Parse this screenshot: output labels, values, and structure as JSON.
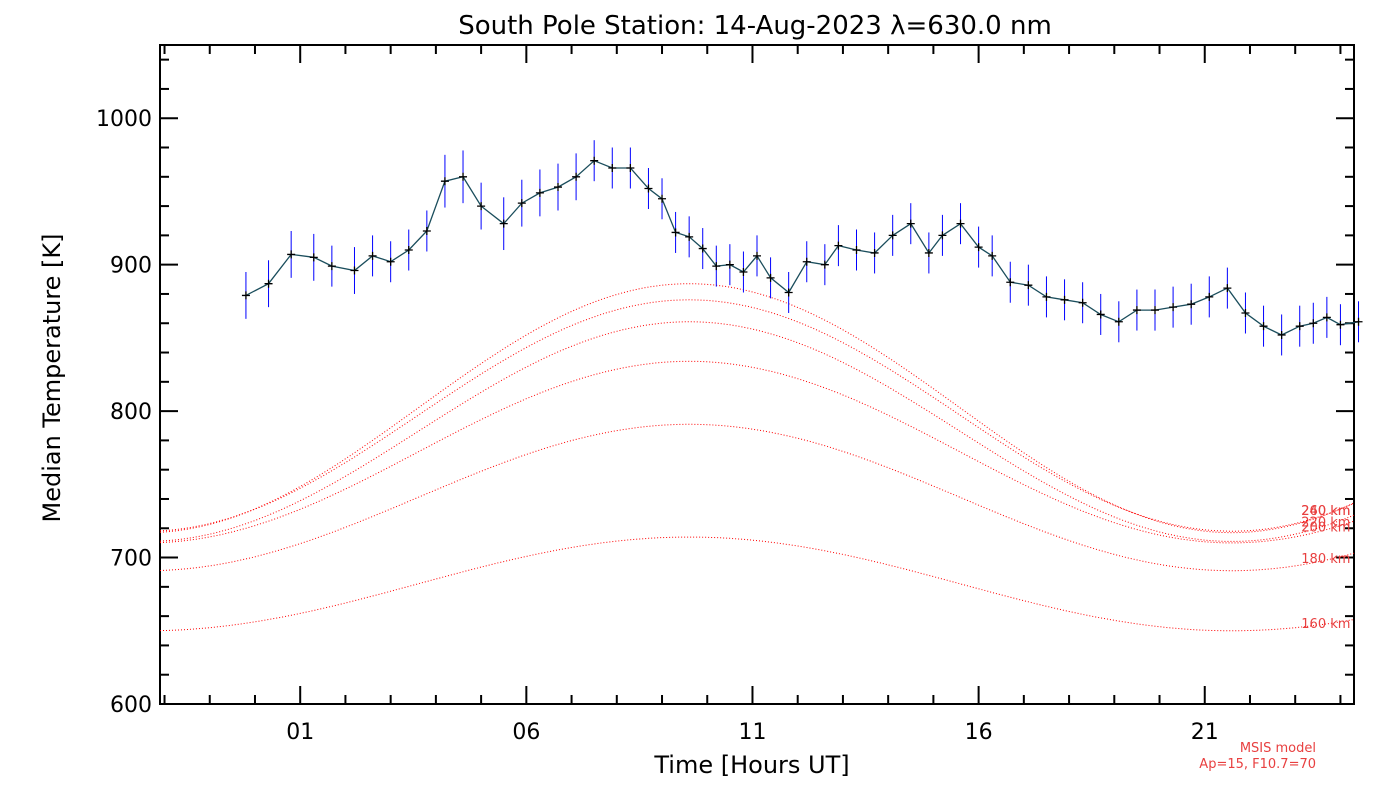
{
  "chart_data": {
    "type": "line",
    "title": "South Pole Station: 14-Aug-2023 λ=630.0 nm",
    "xlabel": "Time [Hours UT]",
    "ylabel": "Median Temperature [K]",
    "xlim": [
      -2.1,
      24.3
    ],
    "ylim": [
      600,
      1050
    ],
    "x_ticks": [
      1,
      6,
      11,
      16,
      21
    ],
    "x_tick_labels": [
      "01",
      "06",
      "11",
      "16",
      "21"
    ],
    "y_ticks": [
      600,
      700,
      800,
      900,
      1000
    ],
    "y_tick_labels": [
      "600",
      "700",
      "800",
      "900",
      "1000"
    ],
    "measurements": {
      "name": "Median temperature",
      "line_color": "#1a4d5c",
      "errorbar_color": "#0000ff",
      "marker_color": "#000000",
      "x": [
        -0.2,
        0.3,
        0.8,
        1.3,
        1.7,
        2.2,
        2.6,
        3.0,
        3.4,
        3.8,
        4.2,
        4.6,
        5.0,
        5.5,
        5.9,
        6.3,
        6.7,
        7.1,
        7.5,
        7.9,
        8.3,
        8.7,
        9.0,
        9.3,
        9.6,
        9.9,
        10.2,
        10.5,
        10.8,
        11.1,
        11.4,
        11.8,
        12.2,
        12.6,
        12.9,
        13.3,
        13.7,
        14.1,
        14.5,
        14.9,
        15.2,
        15.6,
        16.0,
        16.3,
        16.7,
        17.1,
        17.5,
        17.9,
        18.3,
        18.7,
        19.1,
        19.5,
        19.9,
        20.3,
        20.7,
        21.1,
        21.5,
        21.9,
        22.3,
        22.7,
        23.1,
        23.4,
        23.7,
        24.0,
        24.4
      ],
      "y": [
        879,
        887,
        907,
        905,
        899,
        896,
        906,
        902,
        910,
        923,
        957,
        960,
        940,
        928,
        942,
        949,
        953,
        960,
        971,
        966,
        966,
        952,
        945,
        922,
        919,
        911,
        899,
        900,
        895,
        906,
        891,
        881,
        902,
        900,
        913,
        910,
        908,
        920,
        928,
        908,
        920,
        928,
        912,
        906,
        888,
        886,
        878,
        876,
        874,
        866,
        861,
        869,
        869,
        871,
        873,
        878,
        884,
        867,
        858,
        852,
        858,
        860,
        864,
        859,
        861
      ],
      "error": [
        16,
        16,
        16,
        16,
        14,
        16,
        14,
        14,
        14,
        14,
        18,
        18,
        16,
        18,
        16,
        16,
        16,
        16,
        14,
        14,
        14,
        14,
        14,
        14,
        14,
        14,
        14,
        14,
        14,
        14,
        14,
        14,
        14,
        14,
        14,
        14,
        14,
        14,
        14,
        14,
        14,
        14,
        14,
        14,
        14,
        14,
        14,
        14,
        14,
        14,
        14,
        14,
        14,
        14,
        14,
        14,
        14,
        14,
        14,
        14,
        14,
        14,
        14,
        14,
        14
      ]
    },
    "msis_series": [
      {
        "name": "160 km",
        "label": "160 km",
        "mean": 682,
        "amplitude": 32
      },
      {
        "name": "180 km",
        "label": "180 km",
        "mean": 741,
        "amplitude": 50
      },
      {
        "name": "200 km",
        "label": "200 km",
        "mean": 772,
        "amplitude": 62
      },
      {
        "name": "220 km",
        "label": "220 km",
        "mean": 786,
        "amplitude": 75
      },
      {
        "name": "240 km",
        "label": "240 km",
        "mean": 797,
        "amplitude": 79
      },
      {
        "name": "260 km",
        "label": "260 km",
        "mean": 802,
        "amplitude": 85
      }
    ],
    "msis_peak_hour": 9.6,
    "msis_color": "#ff0000",
    "msis_label_color": "#e84040",
    "annotation": {
      "line1": "MSIS model",
      "line2": "Ap=15, F10.7=70",
      "color": "#e84040"
    }
  }
}
